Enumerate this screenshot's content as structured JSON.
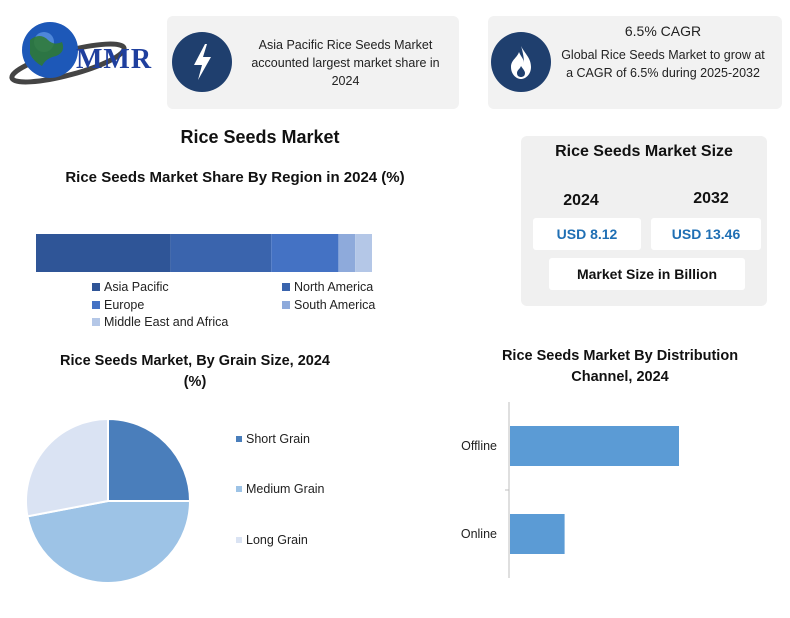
{
  "brand": {
    "name": "MMR"
  },
  "info_cards": [
    {
      "icon": "lightning-icon",
      "text": "Asia Pacific Rice Seeds Market accounted largest market share in 2024"
    },
    {
      "icon": "flame-icon",
      "heading": "6.5% CAGR",
      "text": "Global Rice Seeds Market to grow at a CAGR of 6.5% during 2025-2032"
    }
  ],
  "main_title": "Rice Seeds Market",
  "market_size": {
    "title": "Rice Seeds Market Size",
    "years": [
      "2024",
      "2032"
    ],
    "values": [
      "USD 8.12",
      "USD 13.46"
    ],
    "unit_label": "Market Size in Billion"
  },
  "colors": {
    "dark_navy": "#1f3f6e",
    "asia_pacific": "#2f5597",
    "north_america": "#3a64ad",
    "europe": "#4472c4",
    "south_america": "#8eaadb",
    "mea": "#b4c7e7",
    "short_grain": "#4a7ebb",
    "medium_grain": "#9dc3e6",
    "long_grain": "#dae3f3",
    "channel_bar": "#5b9bd5"
  },
  "chart_data": [
    {
      "type": "bar",
      "orientation": "horizontal-stacked",
      "title": "Rice Seeds Market Share By Region in 2024 (%)",
      "series": [
        {
          "name": "Asia Pacific",
          "value": 40
        },
        {
          "name": "North America",
          "value": 30
        },
        {
          "name": "Europe",
          "value": 20
        },
        {
          "name": "South America",
          "value": 5
        },
        {
          "name": "Middle East and Africa",
          "value": 5
        }
      ],
      "grid": false,
      "legend": "bottom"
    },
    {
      "type": "pie",
      "title": "Rice Seeds Market, By Grain Size, 2024 (%)",
      "slices": [
        {
          "name": "Short Grain",
          "value": 25
        },
        {
          "name": "Medium Grain",
          "value": 47
        },
        {
          "name": "Long Grain",
          "value": 28
        }
      ],
      "legend": "right"
    },
    {
      "type": "bar",
      "orientation": "horizontal",
      "title": "Rice Seeds Market By Distribution Channel, 2024",
      "categories": [
        "Offline",
        "Online"
      ],
      "values": [
        65,
        21
      ],
      "xlim": [
        0,
        100
      ],
      "grid": false
    }
  ]
}
